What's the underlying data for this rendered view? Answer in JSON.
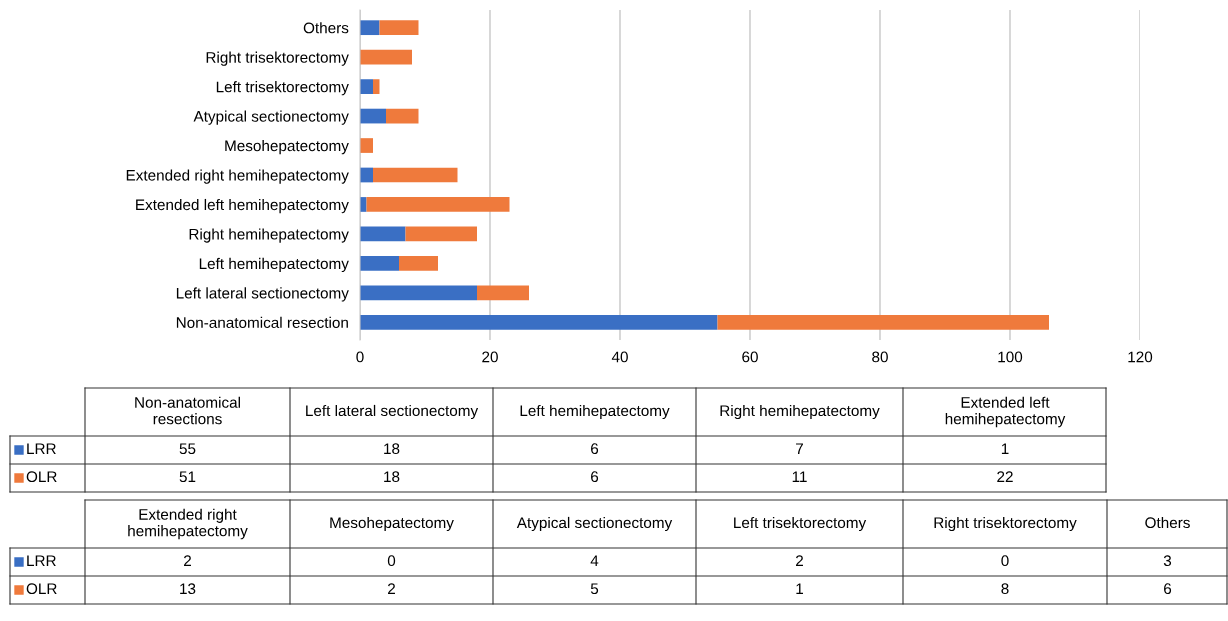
{
  "chart_data": [
    {
      "type": "bar",
      "orientation": "horizontal",
      "stacked": true,
      "categories": [
        "Others",
        "Right trisektorectomy",
        "Left trisektorectomy",
        "Atypical sectionectomy",
        "Mesohepatectomy",
        "Extended right hemihepatectomy",
        "Extended left hemihepatectomy",
        "Right hemihepatectomy",
        "Left hemihepatectomy",
        "Left lateral sectionectomy",
        "Non-anatomical resection"
      ],
      "series": [
        {
          "name": "LRR",
          "color": "#3a6fc4",
          "values": [
            3,
            0,
            2,
            4,
            0,
            2,
            1,
            7,
            6,
            18,
            55
          ]
        },
        {
          "name": "OLR",
          "color": "#ef7a3c",
          "values": [
            6,
            8,
            1,
            5,
            2,
            13,
            22,
            11,
            6,
            8,
            51
          ]
        }
      ],
      "xlim": [
        0,
        120
      ],
      "xticks": [
        0,
        20,
        40,
        60,
        80,
        100,
        120
      ],
      "grid": "x",
      "legend": "bottom"
    },
    {
      "type": "other",
      "annotations": [
        "Non-anatomical resections",
        "Left lateral sectionectomy",
        "Left hemihepatectomy",
        "Right hemihepatectomy",
        "Extended left hemihepatectomy",
        "55",
        "18",
        "6",
        "7",
        "1",
        "51",
        "18",
        "6",
        "11",
        "22",
        "Extended right hemihepatectomy",
        "Mesohepatectomy",
        "Atypical sectionectomy",
        "Left trisektorectomy",
        "Right trisektorectomy",
        "Others",
        "2",
        "0",
        "4",
        "2",
        "0",
        "3",
        "13",
        "2",
        "5",
        "1",
        "8",
        "6"
      ]
    }
  ]
}
